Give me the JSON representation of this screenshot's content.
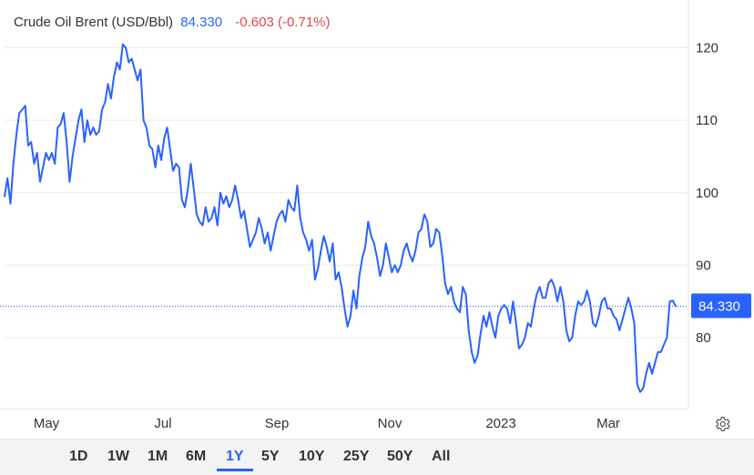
{
  "header": {
    "name": "Crude Oil Brent (USD/Bbl)",
    "price": "84.330",
    "change": "-0.603 (-0.71%)"
  },
  "price_badge": "84.330",
  "timeframes": [
    "1D",
    "1W",
    "1M",
    "6M",
    "1Y",
    "5Y",
    "10Y",
    "25Y",
    "50Y",
    "All"
  ],
  "active_timeframe": "1Y",
  "colors": {
    "line": "#2962ff",
    "negative": "#e4464b",
    "badge": "#2962ff"
  },
  "icons": {
    "settings": "gear-icon"
  },
  "chart_data": {
    "type": "line",
    "title": "Crude Oil Brent (USD/Bbl)",
    "xlabel": "",
    "ylabel": "",
    "x_ticks": [
      "May",
      "Jul",
      "Sep",
      "Nov",
      "2023",
      "Mar"
    ],
    "y_ticks": [
      80,
      90,
      100,
      110,
      120
    ],
    "ylim": [
      70.2,
      126.6
    ],
    "grid": "horizontal",
    "last_value": 84.33,
    "series": [
      {
        "values": [
          99.5,
          102,
          98.5,
          104,
          108,
          111,
          111.5,
          112,
          106.5,
          107,
          104,
          105.5,
          101.5,
          103.5,
          105.5,
          104.5,
          105.5,
          104,
          109,
          109.5,
          111,
          107,
          101.5,
          105,
          107.5,
          110,
          111.5,
          107,
          110,
          108,
          109,
          108,
          108.5,
          111.5,
          112.5,
          115,
          113,
          116,
          118,
          117,
          120.5,
          120,
          118,
          118.5,
          117,
          115.5,
          117,
          110,
          109,
          106.5,
          106,
          103.5,
          106.5,
          104.5,
          107.5,
          109,
          106,
          103,
          104,
          103.5,
          99,
          98,
          100.5,
          104,
          100.5,
          97,
          96,
          95.5,
          98,
          96,
          96.5,
          98,
          95.5,
          100,
          98.5,
          99.5,
          98,
          99,
          101,
          99,
          96.5,
          97.5,
          95,
          92.5,
          93.5,
          94.5,
          96.5,
          95,
          93,
          94.5,
          92,
          94,
          96,
          97,
          97.5,
          96,
          99,
          98,
          97.5,
          101,
          96.5,
          94.5,
          93.5,
          92,
          93.5,
          88,
          89.5,
          92,
          94,
          92.5,
          90.5,
          93,
          88,
          89,
          87,
          84,
          81.5,
          83,
          86.5,
          84,
          88.5,
          91,
          92.5,
          96,
          94,
          93,
          91,
          88.5,
          90,
          93,
          91,
          89,
          90,
          89,
          90,
          92,
          93,
          91.5,
          90.5,
          92,
          94.5,
          95,
          97,
          96,
          92.5,
          93,
          95,
          94.5,
          91.5,
          87.5,
          86,
          87,
          85,
          84,
          83.5,
          87,
          86,
          81,
          78,
          76.5,
          77.5,
          80.5,
          83,
          81.5,
          83.5,
          81.5,
          80,
          83,
          84,
          84.5,
          84,
          82,
          85,
          82,
          78.5,
          79,
          80,
          82,
          81.5,
          84,
          86,
          87,
          85.5,
          85.5,
          87.5,
          88,
          87,
          85,
          87,
          85,
          81,
          79.5,
          80,
          83,
          85,
          84.5,
          85,
          86.5,
          85,
          82,
          81.5,
          83,
          85,
          85.5,
          84,
          84,
          83,
          82.5,
          81,
          82.5,
          84,
          85.5,
          84,
          82,
          73.5,
          72.5,
          73,
          75,
          76.5,
          75,
          76.5,
          78,
          78,
          79,
          80,
          85,
          85.1,
          84.33
        ]
      }
    ]
  }
}
